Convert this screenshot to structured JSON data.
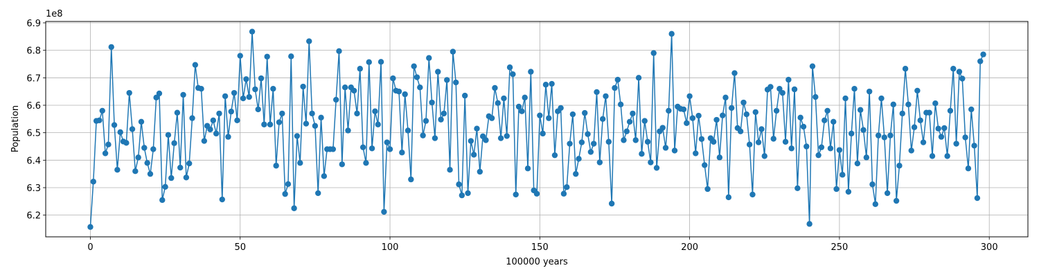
{
  "chart_data": {
    "type": "line",
    "xlabel": "100000 years",
    "ylabel": "Population",
    "offset_label": "1e8",
    "color": "#1f77b4",
    "grid": true,
    "xlim": [
      -14.9,
      312.9
    ],
    "ylim": [
      6.121,
      6.905
    ],
    "xticks": [
      0,
      50,
      100,
      150,
      200,
      250,
      300
    ],
    "yticks": [
      6.2,
      6.3,
      6.4,
      6.5,
      6.6,
      6.7,
      6.8,
      6.9
    ],
    "x": [
      0,
      1,
      2,
      3,
      4,
      5,
      6,
      7,
      8,
      9,
      10,
      11,
      12,
      13,
      14,
      15,
      16,
      17,
      18,
      19,
      20,
      21,
      22,
      23,
      24,
      25,
      26,
      27,
      28,
      29,
      30,
      31,
      32,
      33,
      34,
      35,
      36,
      37,
      38,
      39,
      40,
      41,
      42,
      43,
      44,
      45,
      46,
      47,
      48,
      49,
      50,
      51,
      52,
      53,
      54,
      55,
      56,
      57,
      58,
      59,
      60,
      61,
      62,
      63,
      64,
      65,
      66,
      67,
      68,
      69,
      70,
      71,
      72,
      73,
      74,
      75,
      76,
      77,
      78,
      79,
      80,
      81,
      82,
      83,
      84,
      85,
      86,
      87,
      88,
      89,
      90,
      91,
      92,
      93,
      94,
      95,
      96,
      97,
      98,
      99,
      100,
      101,
      102,
      103,
      104,
      105,
      106,
      107,
      108,
      109,
      110,
      111,
      112,
      113,
      114,
      115,
      116,
      117,
      118,
      119,
      120,
      121,
      122,
      123,
      124,
      125,
      126,
      127,
      128,
      129,
      130,
      131,
      132,
      133,
      134,
      135,
      136,
      137,
      138,
      139,
      140,
      141,
      142,
      143,
      144,
      145,
      146,
      147,
      148,
      149,
      150,
      151,
      152,
      153,
      154,
      155,
      156,
      157,
      158,
      159,
      160,
      161,
      162,
      163,
      164,
      165,
      166,
      167,
      168,
      169,
      170,
      171,
      172,
      173,
      174,
      175,
      176,
      177,
      178,
      179,
      180,
      181,
      182,
      183,
      184,
      185,
      186,
      187,
      188,
      189,
      190,
      191,
      192,
      193,
      194,
      195,
      196,
      197,
      198,
      199,
      200,
      201,
      202,
      203,
      204,
      205,
      206,
      207,
      208,
      209,
      210,
      211,
      212,
      213,
      214,
      215,
      216,
      217,
      218,
      219,
      220,
      221,
      222,
      223,
      224,
      225,
      226,
      227,
      228,
      229,
      230,
      231,
      232,
      233,
      234,
      235,
      236,
      237,
      238,
      239,
      240,
      241,
      242,
      243,
      244,
      245,
      246,
      247,
      248,
      249,
      250,
      251,
      252,
      253,
      254,
      255,
      256,
      257,
      258,
      259,
      260,
      261,
      262,
      263,
      264,
      265,
      266,
      267,
      268,
      269,
      270,
      271,
      272,
      273,
      274,
      275,
      276,
      277,
      278,
      279,
      280,
      281,
      282,
      283,
      284,
      285,
      286,
      287,
      288,
      289,
      290,
      291,
      292,
      293,
      294,
      295,
      296,
      297,
      298
    ],
    "values": [
      6.157,
      6.322,
      6.543,
      6.545,
      6.58,
      6.425,
      6.457,
      6.812,
      6.528,
      6.365,
      6.502,
      6.468,
      6.463,
      6.645,
      6.513,
      6.36,
      6.41,
      6.54,
      6.445,
      6.39,
      6.35,
      6.44,
      6.628,
      6.643,
      6.255,
      6.303,
      6.492,
      6.335,
      6.462,
      6.573,
      6.373,
      6.638,
      6.337,
      6.388,
      6.553,
      6.747,
      6.663,
      6.66,
      6.47,
      6.525,
      6.512,
      6.545,
      6.497,
      6.57,
      6.257,
      6.633,
      6.485,
      6.577,
      6.645,
      6.545,
      6.78,
      6.625,
      6.695,
      6.63,
      6.868,
      6.658,
      6.585,
      6.698,
      6.53,
      6.777,
      6.53,
      6.66,
      6.38,
      6.538,
      6.57,
      6.277,
      6.313,
      6.778,
      6.225,
      6.488,
      6.39,
      6.668,
      6.533,
      6.833,
      6.57,
      6.525,
      6.28,
      6.555,
      6.342,
      6.44,
      6.44,
      6.44,
      6.62,
      6.797,
      6.385,
      6.665,
      6.508,
      6.665,
      6.653,
      6.57,
      6.733,
      6.447,
      6.39,
      6.757,
      6.443,
      6.578,
      6.53,
      6.758,
      6.212,
      6.465,
      6.44,
      6.698,
      6.653,
      6.65,
      6.428,
      6.64,
      6.508,
      6.33,
      6.742,
      6.702,
      6.665,
      6.49,
      6.543,
      6.772,
      6.61,
      6.48,
      6.722,
      6.548,
      6.57,
      6.692,
      6.365,
      6.795,
      6.683,
      6.312,
      6.272,
      6.635,
      6.28,
      6.47,
      6.42,
      6.515,
      6.358,
      6.487,
      6.473,
      6.56,
      6.553,
      6.663,
      6.608,
      6.48,
      6.625,
      6.488,
      6.738,
      6.713,
      6.275,
      6.595,
      6.578,
      6.628,
      6.37,
      6.722,
      6.29,
      6.278,
      6.563,
      6.497,
      6.675,
      6.553,
      6.678,
      6.418,
      6.578,
      6.59,
      6.278,
      6.302,
      6.46,
      6.567,
      6.35,
      6.405,
      6.465,
      6.572,
      6.495,
      6.43,
      6.46,
      6.648,
      6.392,
      6.55,
      6.633,
      6.467,
      6.242,
      6.663,
      6.693,
      6.603,
      6.473,
      6.505,
      6.54,
      6.57,
      6.473,
      6.7,
      6.423,
      6.543,
      6.467,
      6.392,
      6.79,
      6.372,
      6.505,
      6.518,
      6.445,
      6.58,
      6.86,
      6.435,
      6.595,
      6.587,
      6.585,
      6.535,
      6.633,
      6.553,
      6.425,
      6.562,
      6.477,
      6.382,
      6.295,
      6.48,
      6.467,
      6.547,
      6.41,
      6.563,
      6.628,
      6.265,
      6.59,
      6.717,
      6.517,
      6.505,
      6.61,
      6.567,
      6.457,
      6.275,
      6.575,
      6.465,
      6.513,
      6.415,
      6.657,
      6.667,
      6.478,
      6.58,
      6.66,
      6.645,
      6.467,
      6.693,
      6.443,
      6.658,
      6.298,
      6.555,
      6.522,
      6.45,
      6.168,
      6.742,
      6.63,
      6.418,
      6.447,
      6.545,
      6.58,
      6.443,
      6.54,
      6.295,
      6.437,
      6.347,
      6.625,
      6.285,
      6.497,
      6.66,
      6.388,
      6.583,
      6.51,
      6.41,
      6.65,
      6.312,
      6.24,
      6.49,
      6.625,
      6.483,
      6.28,
      6.49,
      6.603,
      6.252,
      6.38,
      6.57,
      6.733,
      6.603,
      6.435,
      6.52,
      6.653,
      6.545,
      6.465,
      6.573,
      6.573,
      6.415,
      6.607,
      6.515,
      6.485,
      6.517,
      6.415,
      6.58,
      6.733,
      6.46,
      6.722,
      6.697,
      6.483,
      6.37,
      6.585,
      6.453,
      6.262,
      6.76,
      6.785
    ]
  }
}
